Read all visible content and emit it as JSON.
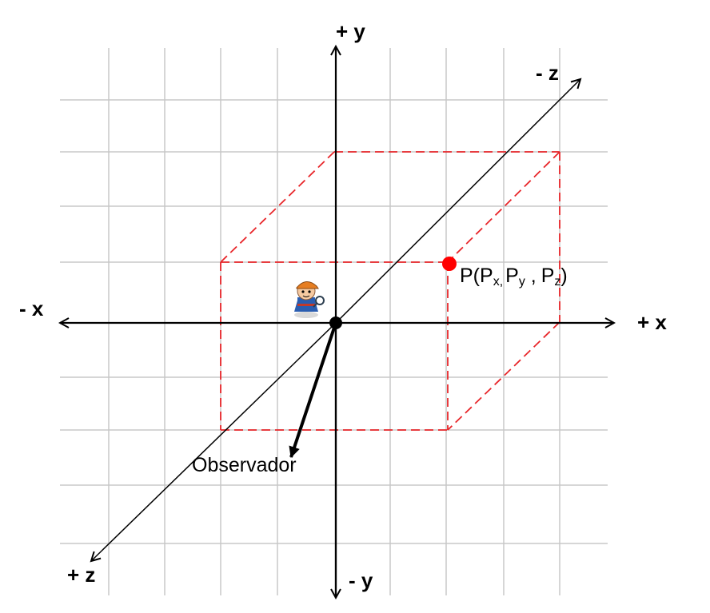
{
  "axes": {
    "pos_y": "+ y",
    "neg_y": "- y",
    "pos_x": "+ x",
    "neg_x": "- x",
    "pos_z": "+ z",
    "neg_z": "- z"
  },
  "point": {
    "prefix": "P(",
    "x_base": "P",
    "x_sub": "x,",
    "y_base": "P",
    "y_sub": "y",
    "sep": " ,",
    "z_base": "P",
    "z_sub": "z",
    "suffix": ")"
  },
  "observer": {
    "label": "Observador",
    "icon": "person-icon"
  },
  "colors": {
    "grid": "#c8c8c8",
    "axis": "#000000",
    "box": "#e8262a",
    "point": "#ff0000"
  }
}
